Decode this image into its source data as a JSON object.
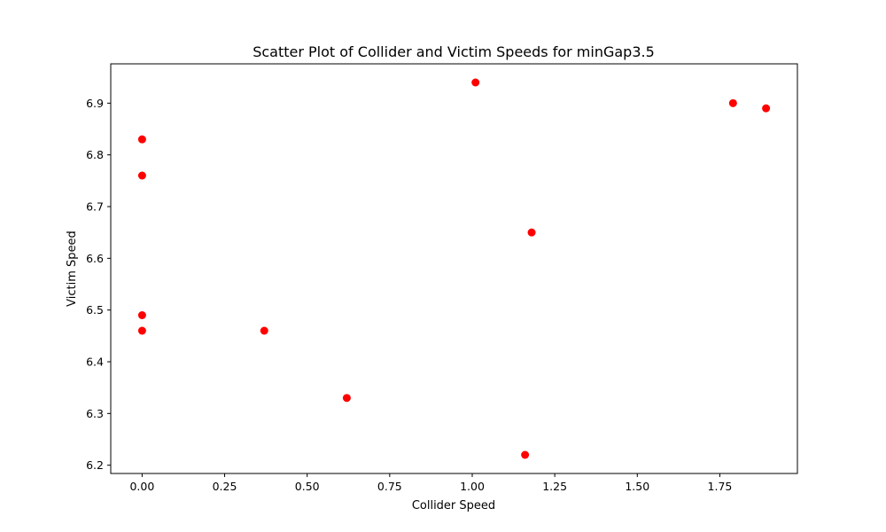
{
  "chart_data": {
    "type": "scatter",
    "title": "Scatter Plot of Collider and Victim Speeds for minGap3.5",
    "xlabel": "Collider Speed",
    "ylabel": "Victim Speed",
    "xlim": [
      -0.095,
      1.985
    ],
    "ylim": [
      6.184,
      6.976
    ],
    "xticks": [
      0.0,
      0.25,
      0.5,
      0.75,
      1.0,
      1.25,
      1.5,
      1.75
    ],
    "xtick_labels": [
      "0.00",
      "0.25",
      "0.50",
      "0.75",
      "1.00",
      "1.25",
      "1.50",
      "1.75"
    ],
    "yticks": [
      6.2,
      6.3,
      6.4,
      6.5,
      6.6,
      6.7,
      6.8,
      6.9
    ],
    "ytick_labels": [
      "6.2",
      "6.3",
      "6.4",
      "6.5",
      "6.6",
      "6.7",
      "6.8",
      "6.9"
    ],
    "marker_color": "#ff0000",
    "grid": false,
    "points": [
      {
        "x": 0.0,
        "y": 6.83
      },
      {
        "x": 0.0,
        "y": 6.76
      },
      {
        "x": 0.0,
        "y": 6.49
      },
      {
        "x": 0.0,
        "y": 6.46
      },
      {
        "x": 0.37,
        "y": 6.46
      },
      {
        "x": 0.62,
        "y": 6.33
      },
      {
        "x": 1.01,
        "y": 6.94
      },
      {
        "x": 1.16,
        "y": 6.22
      },
      {
        "x": 1.18,
        "y": 6.65
      },
      {
        "x": 1.79,
        "y": 6.9
      },
      {
        "x": 1.89,
        "y": 6.89
      }
    ]
  }
}
